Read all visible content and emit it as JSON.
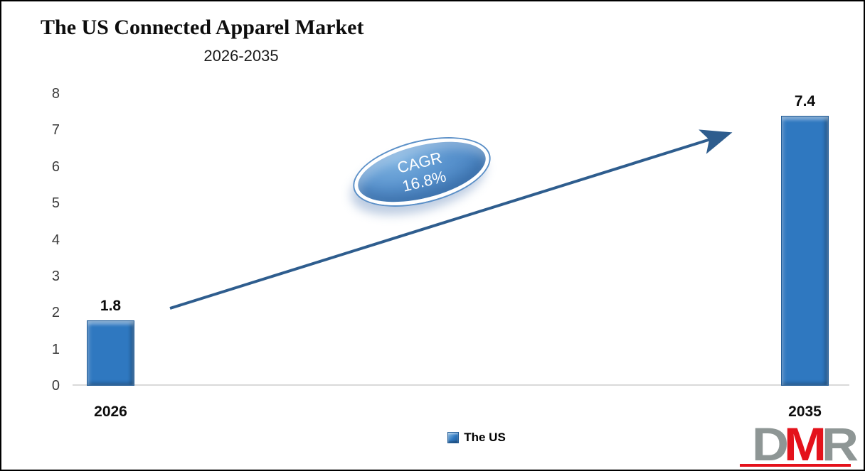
{
  "meta": {
    "title": "The US Connected Apparel Market",
    "subtitle": "2026-2035"
  },
  "chart_data": {
    "type": "bar",
    "categories": [
      "2026",
      "2035"
    ],
    "values": [
      1.8,
      7.4
    ],
    "series": [
      {
        "name": "The US",
        "values": [
          1.8,
          7.4
        ]
      }
    ],
    "title": "The US Connected Apparel Market",
    "subtitle": "2026-2035",
    "xlabel": "",
    "ylabel": "",
    "ylim": [
      0,
      8
    ],
    "yticks": [
      0,
      1,
      2,
      3,
      4,
      5,
      6,
      7,
      8
    ],
    "grid": false,
    "legend_position": "bottom",
    "annotation": {
      "line1": "CAGR",
      "line2": "16.8%"
    },
    "colors": {
      "bar": "#2f78c0",
      "bar_border": "#1f5a96",
      "arrow": "#2e5d8e",
      "baseline": "#d9d9d9",
      "badge_fill": "#5892cd"
    }
  },
  "legend": {
    "label": "The US"
  },
  "logo": {
    "letters": [
      {
        "char": "D",
        "color": "#8e9695"
      },
      {
        "char": "M",
        "color": "#e4121b"
      },
      {
        "char": "R",
        "color": "#8e9695"
      }
    ],
    "underline_color": "#e4121b"
  }
}
